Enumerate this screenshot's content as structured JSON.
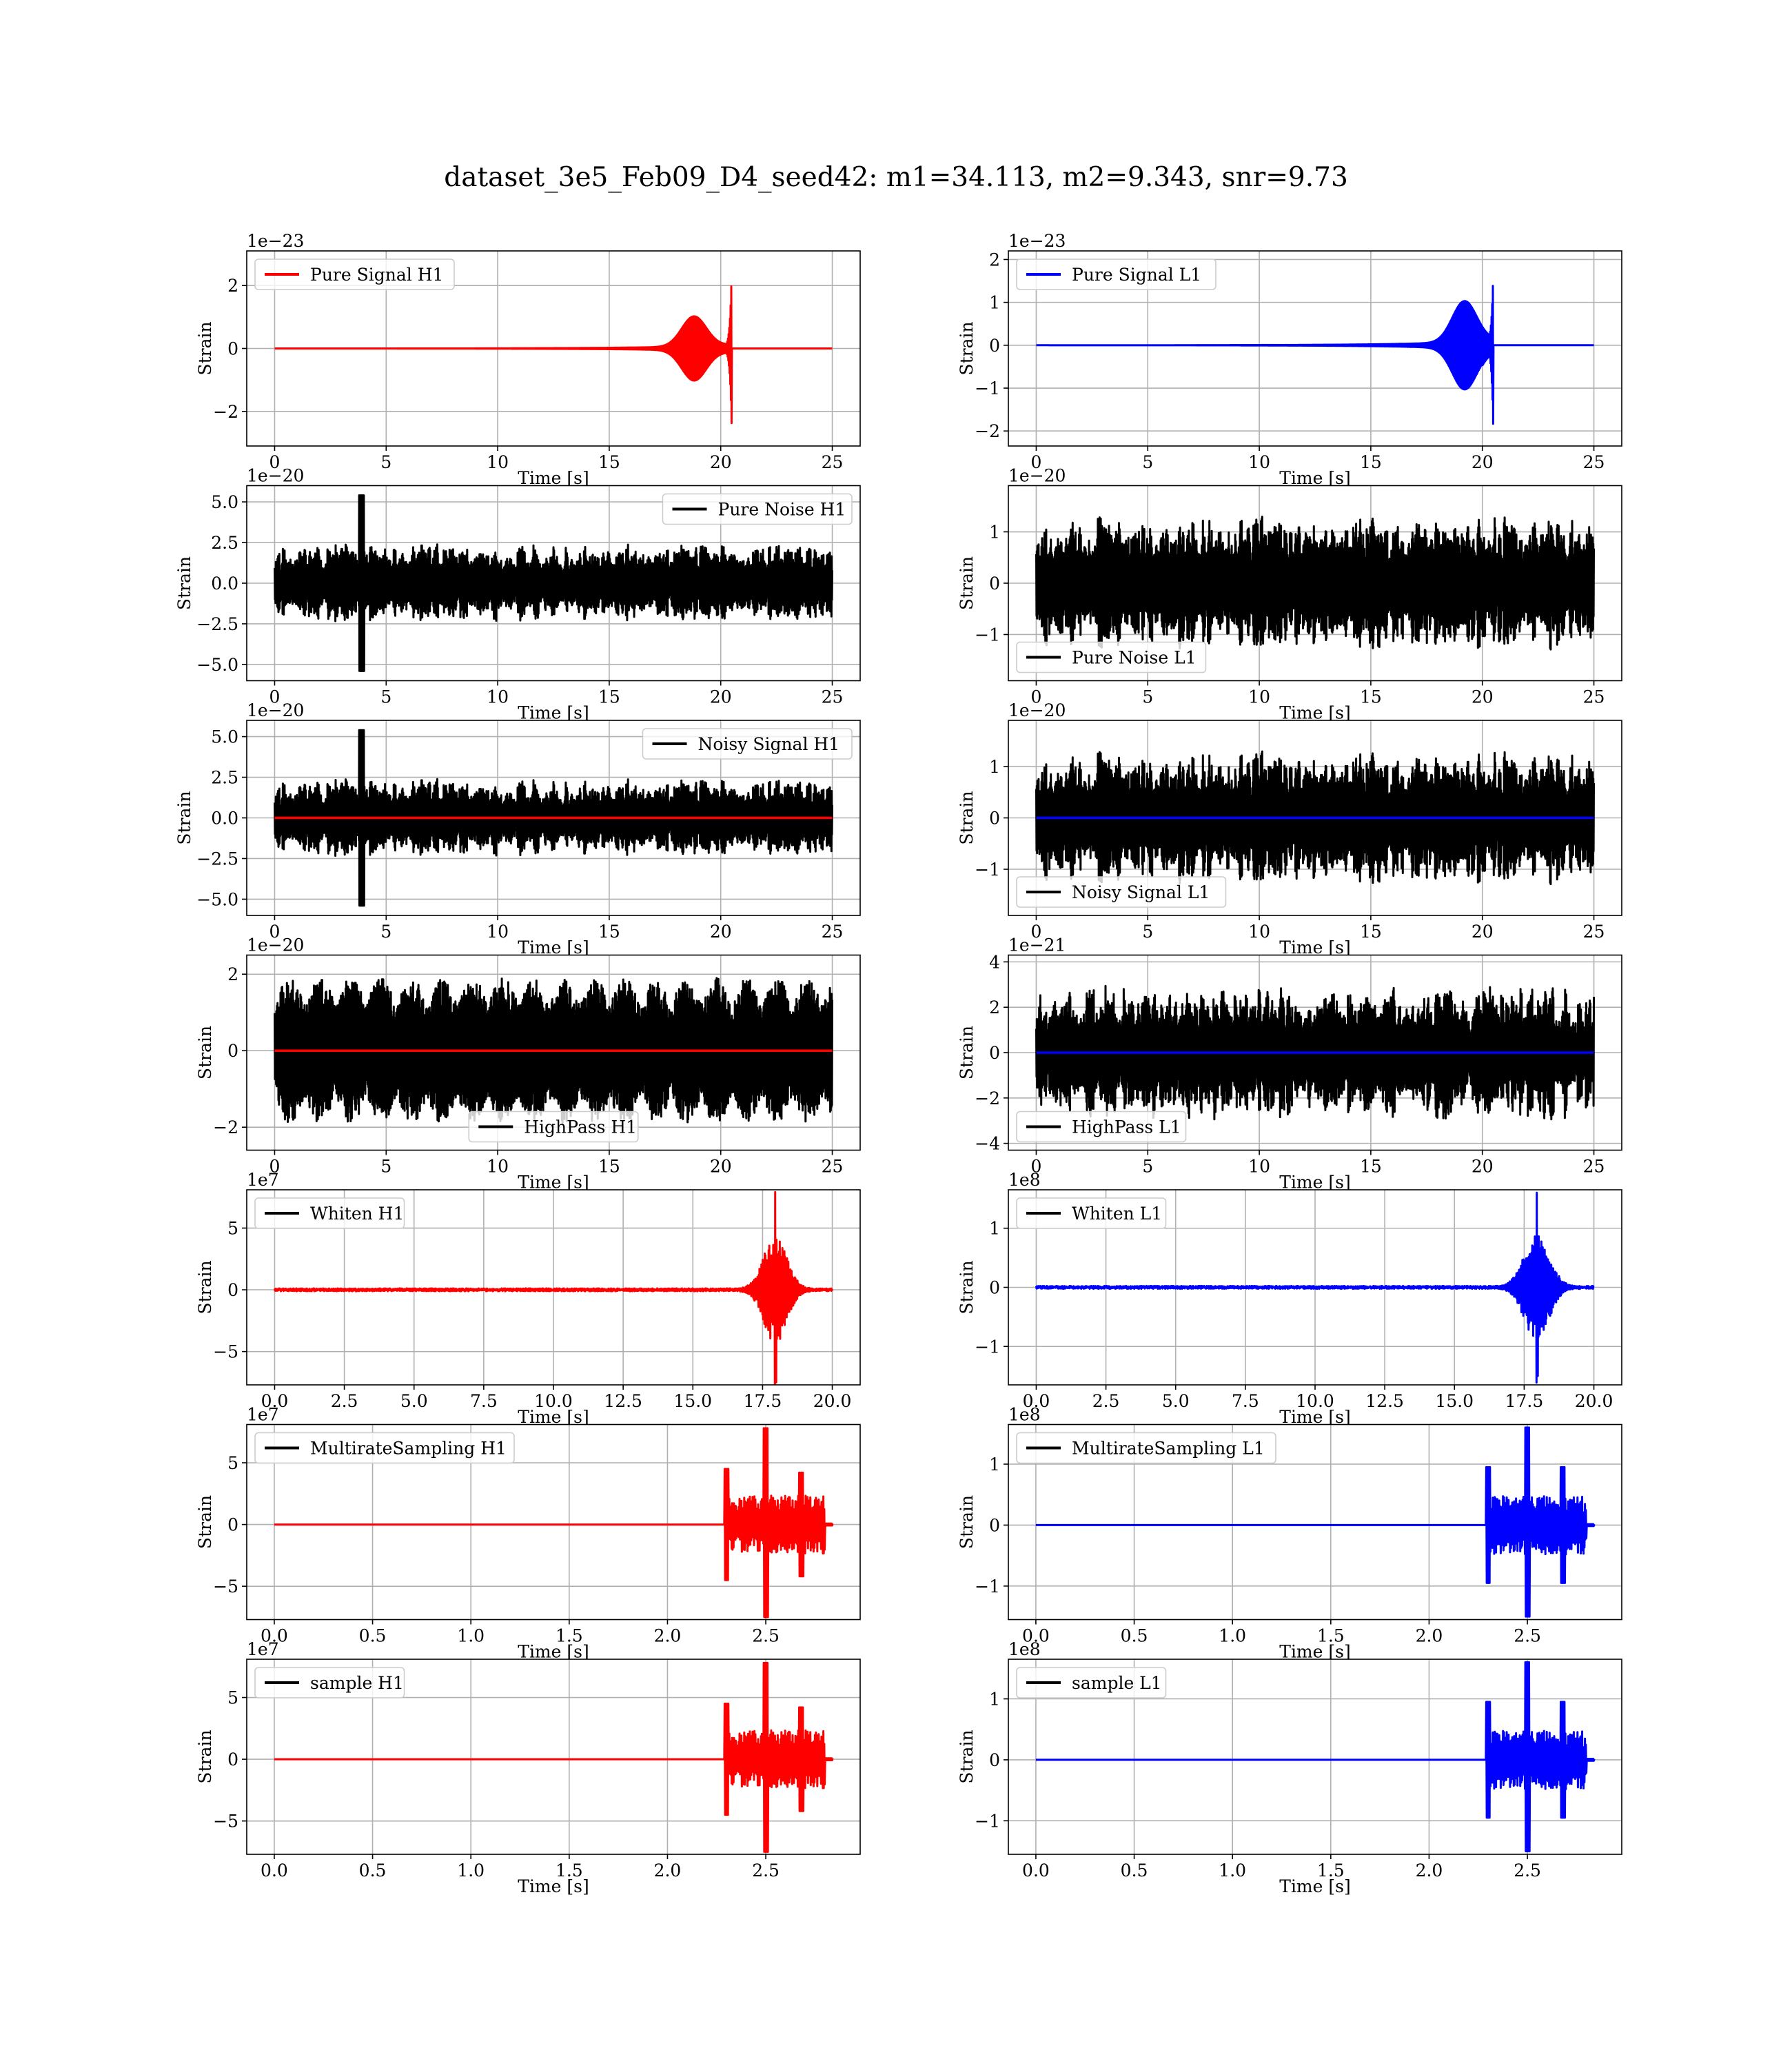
{
  "figure": {
    "title": "dataset_3e5_Feb09_D4_seed42: m1=34.113, m2=9.343, snr=9.73"
  },
  "colors": {
    "H1": "#ff0000",
    "L1": "#0000ff",
    "noise": "#000000",
    "grid": "#b0b0b0"
  },
  "chart_data": [
    {
      "id": "h1-pure-signal",
      "type": "line",
      "kind": "chirp",
      "title": "",
      "xlabel": "Time [s]",
      "ylabel": "Strain",
      "xlim": [
        -1.25,
        26.25
      ],
      "ylim": [
        -3.1,
        3.1
      ],
      "xticks": [
        0,
        5,
        10,
        15,
        20,
        25
      ],
      "xtick_labels": [
        "0",
        "5",
        "10",
        "15",
        "20",
        "25"
      ],
      "yticks": [
        -2,
        0,
        2
      ],
      "ytick_labels": [
        "−2",
        "0",
        "2"
      ],
      "offset": "1e−23",
      "legend_position": "upper left",
      "series": [
        {
          "name": "Pure Signal H1",
          "color": "#ff0000",
          "duration": 25,
          "merger": 20.5,
          "peak": 2.85,
          "trough": -2.85,
          "mid_amp": 0.95,
          "mid_center": 18.8
        }
      ]
    },
    {
      "id": "l1-pure-signal",
      "type": "line",
      "kind": "chirp",
      "title": "",
      "xlabel": "Time [s]",
      "ylabel": "Strain",
      "xlim": [
        -1.25,
        26.25
      ],
      "ylim": [
        -2.35,
        2.2
      ],
      "xticks": [
        0,
        5,
        10,
        15,
        20,
        25
      ],
      "xtick_labels": [
        "0",
        "5",
        "10",
        "15",
        "20",
        "25"
      ],
      "yticks": [
        -2,
        -1,
        0,
        1,
        2
      ],
      "ytick_labels": [
        "−2",
        "−1",
        "0",
        "1",
        "2"
      ],
      "offset": "1e−23",
      "legend_position": "upper left",
      "series": [
        {
          "name": "Pure Signal L1",
          "color": "#0000ff",
          "duration": 25,
          "merger": 20.5,
          "peak": 2.0,
          "trough": -2.2,
          "mid_amp": 0.95,
          "mid_center": 19.2
        }
      ]
    },
    {
      "id": "h1-pure-noise",
      "type": "line",
      "kind": "noise",
      "title": "",
      "xlabel": "Time [s]",
      "ylabel": "Strain",
      "xlim": [
        -1.25,
        26.25
      ],
      "ylim": [
        -6.0,
        6.0
      ],
      "xticks": [
        0,
        5,
        10,
        15,
        20,
        25
      ],
      "xtick_labels": [
        "0",
        "5",
        "10",
        "15",
        "20",
        "25"
      ],
      "yticks": [
        -5.0,
        -2.5,
        0.0,
        2.5,
        5.0
      ],
      "ytick_labels": [
        "−5.0",
        "−2.5",
        "0.0",
        "2.5",
        "5.0"
      ],
      "offset": "1e−20",
      "legend_position": "upper right",
      "series": [
        {
          "name": "Pure Noise H1",
          "color": "#000000",
          "duration": 25,
          "amp": 2.4,
          "seed": 11,
          "spike_at": 3.9,
          "spike_amp": 5.4
        }
      ]
    },
    {
      "id": "l1-pure-noise",
      "type": "line",
      "kind": "noise",
      "title": "",
      "xlabel": "Time [s]",
      "ylabel": "Strain",
      "xlim": [
        -1.25,
        26.25
      ],
      "ylim": [
        -1.9,
        1.9
      ],
      "xticks": [
        0,
        5,
        10,
        15,
        20,
        25
      ],
      "xtick_labels": [
        "0",
        "5",
        "10",
        "15",
        "20",
        "25"
      ],
      "yticks": [
        -1,
        0,
        1
      ],
      "ytick_labels": [
        "−1",
        "0",
        "1"
      ],
      "offset": "1e−20",
      "legend_position": "lower left",
      "series": [
        {
          "name": "Pure Noise L1",
          "color": "#000000",
          "duration": 25,
          "amp": 1.35,
          "seed": 23
        }
      ]
    },
    {
      "id": "h1-noisy-signal",
      "type": "line",
      "kind": "noise",
      "title": "",
      "xlabel": "Time [s]",
      "ylabel": "Strain",
      "xlim": [
        -1.25,
        26.25
      ],
      "ylim": [
        -6.0,
        6.0
      ],
      "xticks": [
        0,
        5,
        10,
        15,
        20,
        25
      ],
      "xtick_labels": [
        "0",
        "5",
        "10",
        "15",
        "20",
        "25"
      ],
      "yticks": [
        -5.0,
        -2.5,
        0.0,
        2.5,
        5.0
      ],
      "ytick_labels": [
        "−5.0",
        "−2.5",
        "0.0",
        "2.5",
        "5.0"
      ],
      "offset": "1e−20",
      "legend_position": "upper right",
      "series": [
        {
          "name": "Noisy Signal H1",
          "color": "#000000",
          "duration": 25,
          "amp": 2.4,
          "seed": 11,
          "spike_at": 3.9,
          "spike_amp": 5.4
        },
        {
          "name": "",
          "color": "#ff0000",
          "flat": true,
          "duration": 25
        }
      ]
    },
    {
      "id": "l1-noisy-signal",
      "type": "line",
      "kind": "noise",
      "title": "",
      "xlabel": "Time [s]",
      "ylabel": "Strain",
      "xlim": [
        -1.25,
        26.25
      ],
      "ylim": [
        -1.9,
        1.9
      ],
      "xticks": [
        0,
        5,
        10,
        15,
        20,
        25
      ],
      "xtick_labels": [
        "0",
        "5",
        "10",
        "15",
        "20",
        "25"
      ],
      "yticks": [
        -1,
        0,
        1
      ],
      "ytick_labels": [
        "−1",
        "0",
        "1"
      ],
      "offset": "1e−20",
      "legend_position": "lower left",
      "series": [
        {
          "name": "Noisy Signal L1",
          "color": "#000000",
          "duration": 25,
          "amp": 1.35,
          "seed": 23
        },
        {
          "name": "",
          "color": "#0000ff",
          "flat": true,
          "duration": 25
        }
      ]
    },
    {
      "id": "h1-highpass",
      "type": "line",
      "kind": "noise",
      "title": "",
      "xlabel": "Time [s]",
      "ylabel": "Strain",
      "xlim": [
        -1.25,
        26.25
      ],
      "ylim": [
        -2.6,
        2.5
      ],
      "xticks": [
        0,
        5,
        10,
        15,
        20,
        25
      ],
      "xtick_labels": [
        "0",
        "5",
        "10",
        "15",
        "20",
        "25"
      ],
      "yticks": [
        -2,
        0,
        2
      ],
      "ytick_labels": [
        "−2",
        "0",
        "2"
      ],
      "offset": "1e−20",
      "legend_position": "lower center",
      "series": [
        {
          "name": "HighPass H1",
          "color": "#000000",
          "duration": 25,
          "amp": 1.9,
          "seed": 37,
          "periodic": true
        },
        {
          "name": "",
          "color": "#ff0000",
          "flat": true,
          "duration": 25
        }
      ]
    },
    {
      "id": "l1-highpass",
      "type": "line",
      "kind": "noise",
      "title": "",
      "xlabel": "Time [s]",
      "ylabel": "Strain",
      "xlim": [
        -1.25,
        26.25
      ],
      "ylim": [
        -4.3,
        4.3
      ],
      "xticks": [
        0,
        5,
        10,
        15,
        20,
        25
      ],
      "xtick_labels": [
        "0",
        "5",
        "10",
        "15",
        "20",
        "25"
      ],
      "yticks": [
        -4,
        -2,
        0,
        2,
        4
      ],
      "ytick_labels": [
        "−4",
        "−2",
        "0",
        "2",
        "4"
      ],
      "offset": "1e−21",
      "legend_position": "lower left",
      "series": [
        {
          "name": "HighPass L1",
          "color": "#000000",
          "duration": 25,
          "amp": 3.0,
          "seed": 53
        },
        {
          "name": "",
          "color": "#0000ff",
          "flat": true,
          "duration": 25
        }
      ]
    },
    {
      "id": "h1-whiten",
      "type": "line",
      "kind": "burst",
      "title": "",
      "xlabel": "Time [s]",
      "ylabel": "Strain",
      "xlim": [
        -1.0,
        21.0
      ],
      "ylim": [
        -7.7,
        8.1
      ],
      "xticks": [
        0,
        2.5,
        5,
        7.5,
        10,
        12.5,
        15,
        17.5,
        20
      ],
      "xtick_labels": [
        "0.0",
        "2.5",
        "5.0",
        "7.5",
        "10.0",
        "12.5",
        "15.0",
        "17.5",
        "20.0"
      ],
      "yticks": [
        -5,
        0,
        5
      ],
      "ytick_labels": [
        "−5",
        "0",
        "5"
      ],
      "offset": "1e7",
      "legend_position": "upper left",
      "series": [
        {
          "name": "Whiten H1",
          "color": "#000000",
          "legend_only": true
        },
        {
          "name": "",
          "color": "#ff0000",
          "duration": 20,
          "center": 17.95,
          "width": 0.7,
          "peak": 7.8,
          "trough": -7.5,
          "floor": 0.12,
          "seed": 71
        }
      ]
    },
    {
      "id": "l1-whiten",
      "type": "line",
      "kind": "burst",
      "title": "",
      "xlabel": "Time [s]",
      "ylabel": "Strain",
      "xlim": [
        -1.0,
        21.0
      ],
      "ylim": [
        -1.65,
        1.65
      ],
      "xticks": [
        0,
        2.5,
        5,
        7.5,
        10,
        12.5,
        15,
        17.5,
        20
      ],
      "xtick_labels": [
        "0.0",
        "2.5",
        "5.0",
        "7.5",
        "10.0",
        "12.5",
        "15.0",
        "17.5",
        "20.0"
      ],
      "yticks": [
        -1,
        0,
        1
      ],
      "ytick_labels": [
        "−1",
        "0",
        "1"
      ],
      "offset": "1e8",
      "legend_position": "upper left",
      "series": [
        {
          "name": "Whiten L1",
          "color": "#000000",
          "legend_only": true
        },
        {
          "name": "",
          "color": "#0000ff",
          "duration": 20,
          "center": 17.95,
          "width": 0.75,
          "peak": 1.6,
          "trough": -1.5,
          "floor": 0.025,
          "seed": 83
        }
      ]
    },
    {
      "id": "h1-multirate",
      "type": "line",
      "kind": "multiburst",
      "title": "",
      "xlabel": "Time [s]",
      "ylabel": "Strain",
      "xlim": [
        -0.14,
        2.98
      ],
      "ylim": [
        -7.7,
        8.1
      ],
      "xticks": [
        0,
        0.5,
        1.0,
        1.5,
        2.0,
        2.5
      ],
      "xtick_labels": [
        "0.0",
        "0.5",
        "1.0",
        "1.5",
        "2.0",
        "2.5"
      ],
      "yticks": [
        -5,
        0,
        5
      ],
      "ytick_labels": [
        "−5",
        "0",
        "5"
      ],
      "offset": "1e7",
      "legend_position": "upper left",
      "series": [
        {
          "name": "MultirateSampling H1",
          "color": "#000000",
          "legend_only": true
        },
        {
          "name": "",
          "color": "#ff0000",
          "duration": 2.84,
          "start": 2.29,
          "end": 2.8,
          "peak": 7.8,
          "trough": -7.5,
          "edge": 4.5,
          "peak_at": 2.5,
          "side_peak_at": 2.68,
          "side_peak": 4.2,
          "seed": 97
        }
      ]
    },
    {
      "id": "l1-multirate",
      "type": "line",
      "kind": "multiburst",
      "title": "",
      "xlabel": "Time [s]",
      "ylabel": "Strain",
      "xlim": [
        -0.14,
        2.98
      ],
      "ylim": [
        -1.55,
        1.65
      ],
      "xticks": [
        0,
        0.5,
        1.0,
        1.5,
        2.0,
        2.5
      ],
      "xtick_labels": [
        "0.0",
        "0.5",
        "1.0",
        "1.5",
        "2.0",
        "2.5"
      ],
      "yticks": [
        -1,
        0,
        1
      ],
      "ytick_labels": [
        "−1",
        "0",
        "1"
      ],
      "offset": "1e8",
      "legend_position": "upper left",
      "series": [
        {
          "name": "MultirateSampling L1",
          "color": "#000000",
          "legend_only": true
        },
        {
          "name": "",
          "color": "#0000ff",
          "duration": 2.84,
          "start": 2.29,
          "end": 2.8,
          "peak": 1.6,
          "trough": -1.5,
          "edge": 0.95,
          "peak_at": 2.5,
          "side_peak_at": 2.68,
          "side_peak": 0.95,
          "seed": 109
        }
      ]
    },
    {
      "id": "h1-sample",
      "type": "line",
      "kind": "multiburst",
      "title": "",
      "xlabel": "Time [s]",
      "ylabel": "Strain",
      "xlim": [
        -0.14,
        2.98
      ],
      "ylim": [
        -7.7,
        8.1
      ],
      "xticks": [
        0,
        0.5,
        1.0,
        1.5,
        2.0,
        2.5
      ],
      "xtick_labels": [
        "0.0",
        "0.5",
        "1.0",
        "1.5",
        "2.0",
        "2.5"
      ],
      "yticks": [
        -5,
        0,
        5
      ],
      "ytick_labels": [
        "−5",
        "0",
        "5"
      ],
      "offset": "1e7",
      "legend_position": "upper left",
      "series": [
        {
          "name": "sample H1",
          "color": "#000000",
          "legend_only": true
        },
        {
          "name": "",
          "color": "#ff0000",
          "duration": 2.84,
          "start": 2.29,
          "end": 2.8,
          "peak": 7.8,
          "trough": -7.5,
          "edge": 4.5,
          "peak_at": 2.5,
          "side_peak_at": 2.68,
          "side_peak": 4.2,
          "seed": 97
        }
      ]
    },
    {
      "id": "l1-sample",
      "type": "line",
      "kind": "multiburst",
      "title": "",
      "xlabel": "Time [s]",
      "ylabel": "Strain",
      "xlim": [
        -0.14,
        2.98
      ],
      "ylim": [
        -1.55,
        1.65
      ],
      "xticks": [
        0,
        0.5,
        1.0,
        1.5,
        2.0,
        2.5
      ],
      "xtick_labels": [
        "0.0",
        "0.5",
        "1.0",
        "1.5",
        "2.0",
        "2.5"
      ],
      "yticks": [
        -1,
        0,
        1
      ],
      "ytick_labels": [
        "−1",
        "0",
        "1"
      ],
      "offset": "1e8",
      "legend_position": "upper left",
      "series": [
        {
          "name": "sample L1",
          "color": "#000000",
          "legend_only": true
        },
        {
          "name": "",
          "color": "#0000ff",
          "duration": 2.84,
          "start": 2.29,
          "end": 2.8,
          "peak": 1.6,
          "trough": -1.5,
          "edge": 0.95,
          "peak_at": 2.5,
          "side_peak_at": 2.68,
          "side_peak": 0.95,
          "seed": 109
        }
      ]
    }
  ]
}
